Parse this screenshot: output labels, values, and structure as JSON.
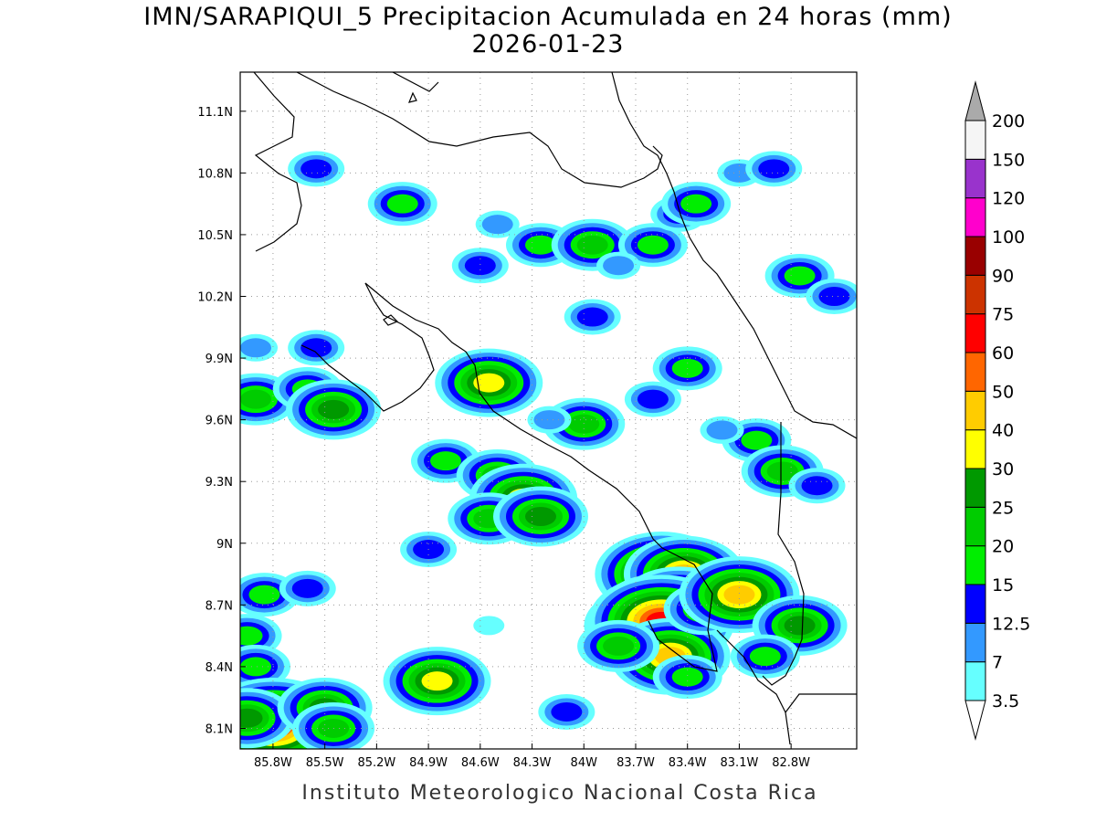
{
  "title_line1": "IMN/SARAPIQUI_5 Precipitacion Acumulada en 24 horas (mm)",
  "title_line2": "2026-01-23",
  "footer": "Instituto Meteorologico Nacional Costa Rica",
  "map": {
    "lat_ticks": [
      "11.1N",
      "10.8N",
      "10.5N",
      "10.2N",
      "9.9N",
      "9.6N",
      "9.3N",
      "9N",
      "8.7N",
      "8.4N",
      "8.1N"
    ],
    "lon_ticks": [
      "85.8W",
      "85.5W",
      "85.2W",
      "84.9W",
      "84.6W",
      "84.3W",
      "84W",
      "83.7W",
      "83.4W",
      "83.1W",
      "82.8W"
    ]
  },
  "colorbar": {
    "levels": [
      "3.5",
      "7",
      "12.5",
      "15",
      "20",
      "25",
      "30",
      "40",
      "50",
      "60",
      "75",
      "90",
      "100",
      "120",
      "150",
      "200"
    ],
    "colors": [
      "#66ffff",
      "#3399ff",
      "#0000ff",
      "#00ee00",
      "#00cc00",
      "#009900",
      "#ffff00",
      "#ffcc00",
      "#ff6600",
      "#ff0000",
      "#cc3300",
      "#990000",
      "#ff00cc",
      "#9933cc",
      "#f5f5f5",
      "#aaaaaa"
    ]
  },
  "rain_cells": [
    {
      "lon": -85.05,
      "lat": 10.65,
      "level": 3
    },
    {
      "lon": -84.5,
      "lat": 10.55,
      "level": 1
    },
    {
      "lon": -84.25,
      "lat": 10.45,
      "level": 3
    },
    {
      "lon": -83.95,
      "lat": 10.45,
      "level": 4
    },
    {
      "lon": -83.6,
      "lat": 10.45,
      "level": 3
    },
    {
      "lon": -83.45,
      "lat": 10.6,
      "level": 2
    },
    {
      "lon": -83.35,
      "lat": 10.65,
      "level": 3
    },
    {
      "lon": -83.1,
      "lat": 10.8,
      "level": 1
    },
    {
      "lon": -82.9,
      "lat": 10.82,
      "level": 2
    },
    {
      "lon": -82.75,
      "lat": 10.3,
      "level": 3
    },
    {
      "lon": -82.55,
      "lat": 10.2,
      "level": 2
    },
    {
      "lon": -85.55,
      "lat": 10.82,
      "level": 2
    },
    {
      "lon": -84.6,
      "lat": 10.35,
      "level": 2
    },
    {
      "lon": -83.8,
      "lat": 10.35,
      "level": 1
    },
    {
      "lon": -83.95,
      "lat": 10.1,
      "level": 2
    },
    {
      "lon": -83.4,
      "lat": 9.85,
      "level": 3
    },
    {
      "lon": -83.6,
      "lat": 9.7,
      "level": 2
    },
    {
      "lon": -85.9,
      "lat": 9.95,
      "level": 1
    },
    {
      "lon": -85.55,
      "lat": 9.95,
      "level": 2
    },
    {
      "lon": -85.9,
      "lat": 9.7,
      "level": 4
    },
    {
      "lon": -85.6,
      "lat": 9.75,
      "level": 3
    },
    {
      "lon": -85.45,
      "lat": 9.65,
      "level": 5
    },
    {
      "lon": -84.55,
      "lat": 9.78,
      "level": 6
    },
    {
      "lon": -84.8,
      "lat": 9.4,
      "level": 3
    },
    {
      "lon": -84.5,
      "lat": 9.33,
      "level": 4
    },
    {
      "lon": -84.35,
      "lat": 9.22,
      "level": 6
    },
    {
      "lon": -84.55,
      "lat": 9.12,
      "level": 4
    },
    {
      "lon": -84.25,
      "lat": 9.13,
      "level": 5
    },
    {
      "lon": -84.9,
      "lat": 8.97,
      "level": 2
    },
    {
      "lon": -83.55,
      "lat": 8.85,
      "level": 8
    },
    {
      "lon": -83.42,
      "lat": 8.85,
      "level": 7
    },
    {
      "lon": -83.6,
      "lat": 8.7,
      "level": 5
    },
    {
      "lon": -83.45,
      "lat": 8.7,
      "level": 7
    },
    {
      "lon": -83.65,
      "lat": 8.6,
      "level": 7
    },
    {
      "lon": -83.55,
      "lat": 8.62,
      "level": 9
    },
    {
      "lon": -83.5,
      "lat": 8.45,
      "level": 7
    },
    {
      "lon": -83.3,
      "lat": 8.68,
      "level": 4
    },
    {
      "lon": -83.1,
      "lat": 8.75,
      "level": 7
    },
    {
      "lon": -83.8,
      "lat": 8.5,
      "level": 4
    },
    {
      "lon": -83.4,
      "lat": 8.35,
      "level": 3
    },
    {
      "lon": -82.75,
      "lat": 8.6,
      "level": 5
    },
    {
      "lon": -82.95,
      "lat": 8.45,
      "level": 3
    },
    {
      "lon": -85.85,
      "lat": 8.75,
      "level": 3
    },
    {
      "lon": -85.6,
      "lat": 8.78,
      "level": 2
    },
    {
      "lon": -85.95,
      "lat": 8.55,
      "level": 3
    },
    {
      "lon": -85.9,
      "lat": 8.4,
      "level": 3
    },
    {
      "lon": -85.8,
      "lat": 8.12,
      "level": 9
    },
    {
      "lon": -85.95,
      "lat": 8.15,
      "level": 5
    },
    {
      "lon": -85.5,
      "lat": 8.2,
      "level": 5
    },
    {
      "lon": -85.45,
      "lat": 8.1,
      "level": 4
    },
    {
      "lon": -84.85,
      "lat": 8.33,
      "level": 6
    },
    {
      "lon": -84.1,
      "lat": 8.18,
      "level": 2
    },
    {
      "lon": -84.55,
      "lat": 8.6,
      "level": 0
    },
    {
      "lon": -83.0,
      "lat": 9.5,
      "level": 3
    },
    {
      "lon": -83.2,
      "lat": 9.55,
      "level": 1
    },
    {
      "lon": -82.85,
      "lat": 9.35,
      "level": 4
    },
    {
      "lon": -82.65,
      "lat": 9.28,
      "level": 2
    },
    {
      "lon": -84.0,
      "lat": 9.58,
      "level": 4
    },
    {
      "lon": -84.2,
      "lat": 9.6,
      "level": 1
    }
  ]
}
